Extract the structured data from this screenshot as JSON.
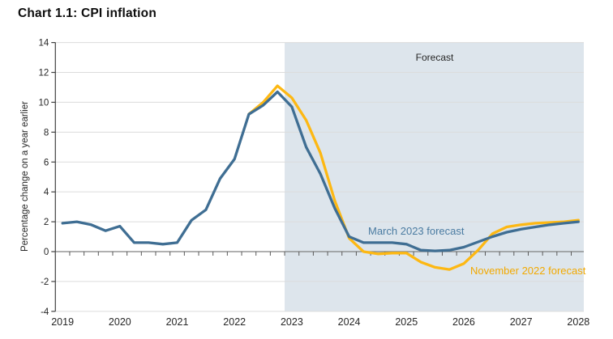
{
  "title": "Chart 1.1: CPI inflation",
  "colors": {
    "title": "#0d0d0d",
    "text": "#262626",
    "gridline": "#dcdcdc",
    "zero_line": "#808080",
    "axis": "#404040",
    "tick": "#595959",
    "forecast_shade": "#dde5ec",
    "line_march": "#3f6e93",
    "line_november": "#fdb813",
    "label_march": "#4a7ba1",
    "label_november": "#f2a900"
  },
  "chart_data": {
    "type": "line",
    "title": "Chart 1.1: CPI inflation",
    "xlabel": "",
    "ylabel": "Percentage change on a year earlier",
    "ylim": [
      -4,
      14
    ],
    "yticks": [
      14,
      12,
      10,
      8,
      6,
      4,
      2,
      0,
      -2,
      -4
    ],
    "xtick_years": [
      "2019",
      "2020",
      "2021",
      "2022",
      "2023",
      "2024",
      "2025",
      "2026",
      "2027",
      "2028"
    ],
    "x_minor_tick": "quarterly",
    "grid": "horizontal-light",
    "forecast_region": {
      "label": "Forecast",
      "starts_at": "2023 Q1",
      "start_x": 2023.0,
      "end_x": 2028.25
    },
    "legend_position": "inline-labels",
    "series": [
      {
        "name": "November 2022 forecast",
        "color": "#fdb813",
        "x_start": 2022.25,
        "x_step": 0.25,
        "values": [
          9.2,
          10.0,
          11.1,
          10.3,
          8.8,
          6.6,
          3.4,
          0.9,
          0.0,
          -0.15,
          -0.1,
          -0.1,
          -0.7,
          -1.05,
          -1.2,
          -0.8,
          0.1,
          1.2,
          1.65,
          1.8,
          1.9,
          1.95,
          2.0,
          2.1
        ]
      },
      {
        "name": "March 2023 forecast",
        "color": "#3f6e93",
        "x_start": 2019.0,
        "x_step": 0.25,
        "values": [
          1.9,
          2.0,
          1.8,
          1.4,
          1.7,
          0.6,
          0.6,
          0.5,
          0.6,
          2.1,
          2.8,
          4.9,
          6.2,
          9.2,
          9.8,
          10.7,
          9.7,
          7.0,
          5.2,
          2.9,
          1.0,
          0.6,
          0.6,
          0.6,
          0.5,
          0.1,
          0.05,
          0.1,
          0.3,
          0.65,
          1.0,
          1.3,
          1.5,
          1.65,
          1.8,
          1.9,
          2.0
        ]
      }
    ],
    "annotations": [
      {
        "text": "Forecast",
        "x": 2025.5,
        "y": 13.0
      },
      {
        "text": "March 2023 forecast",
        "x": 2024.5,
        "y": 1.4,
        "color": "#4a7ba1"
      },
      {
        "text": "November 2022 forecast",
        "x": 2026.3,
        "y": -1.3,
        "color": "#f2a900"
      }
    ]
  }
}
